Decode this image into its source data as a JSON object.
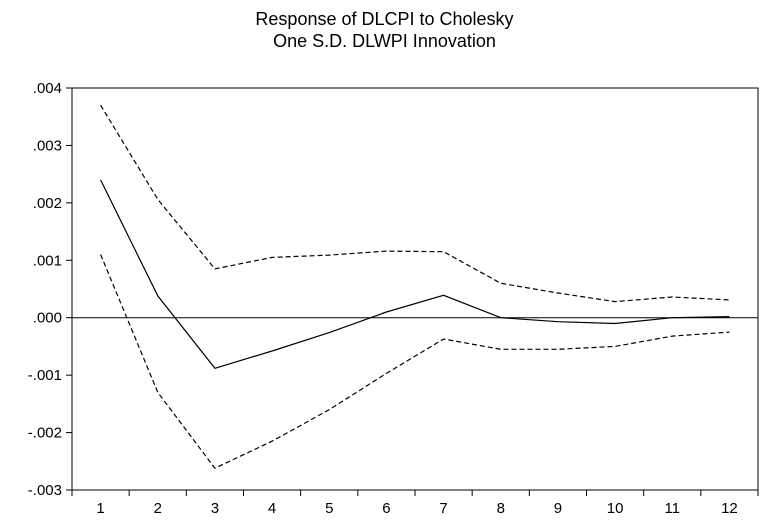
{
  "chart_data": {
    "type": "line",
    "title_line1": "Response of DLCPI to Cholesky",
    "title_line2": "One S.D. DLWPI Innovation",
    "xlabel": "",
    "ylabel": "",
    "x": [
      1,
      2,
      3,
      4,
      5,
      6,
      7,
      8,
      9,
      10,
      11,
      12
    ],
    "ylim": [
      -0.003,
      0.004
    ],
    "yticks": [
      0.004,
      0.003,
      0.002,
      0.001,
      0.0,
      -0.001,
      -0.002,
      -0.003
    ],
    "ytick_labels": [
      ".004",
      ".003",
      ".002",
      ".001",
      ".000",
      "-.001",
      "-.002",
      "-.003"
    ],
    "xtick_labels": [
      "1",
      "2",
      "3",
      "4",
      "5",
      "6",
      "7",
      "8",
      "9",
      "10",
      "11",
      "12"
    ],
    "zero_line": true,
    "grid": false,
    "series": [
      {
        "style": "solid",
        "values": [
          0.0024,
          0.00038,
          -0.00088,
          -0.00058,
          -0.00026,
          0.0001,
          0.00039,
          0.0,
          -7e-05,
          -0.0001,
          0.0,
          2e-05
        ]
      },
      {
        "style": "dashed",
        "values": [
          0.0037,
          0.00206,
          0.00085,
          0.00105,
          0.00109,
          0.00116,
          0.00115,
          0.0006,
          0.00043,
          0.00028,
          0.00036,
          0.00031
        ]
      },
      {
        "style": "dashed",
        "values": [
          0.0011,
          -0.0013,
          -0.00262,
          -0.00215,
          -0.0016,
          -0.00097,
          -0.00037,
          -0.00055,
          -0.00055,
          -0.0005,
          -0.00032,
          -0.00025
        ]
      }
    ],
    "colors": {
      "line": "#000000",
      "axis": "#000000",
      "background": "#ffffff"
    }
  }
}
